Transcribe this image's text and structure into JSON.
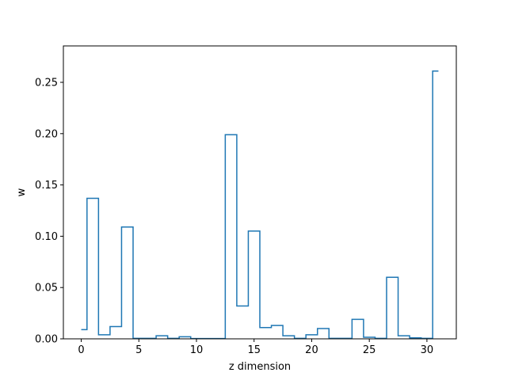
{
  "chart_data": {
    "type": "line",
    "drawstyle": "steps-mid",
    "title": "",
    "xlabel": "z dimension",
    "ylabel": "w",
    "xlim": [
      -1.55,
      32.55
    ],
    "ylim": [
      0,
      0.2855
    ],
    "xticks": [
      0,
      5,
      10,
      15,
      20,
      25,
      30
    ],
    "xtick_labels": [
      "0",
      "5",
      "10",
      "15",
      "20",
      "25",
      "30"
    ],
    "yticks": [
      0.0,
      0.05,
      0.1,
      0.15,
      0.2,
      0.25
    ],
    "ytick_labels": [
      "0.00",
      "0.05",
      "0.10",
      "0.15",
      "0.20",
      "0.25"
    ],
    "grid": false,
    "series": [
      {
        "color": "#1f77b4",
        "x": [
          0,
          1,
          2,
          3,
          4,
          5,
          6,
          7,
          8,
          9,
          10,
          11,
          12,
          13,
          14,
          15,
          16,
          17,
          18,
          19,
          20,
          21,
          22,
          23,
          24,
          25,
          26,
          27,
          28,
          29,
          30,
          31
        ],
        "values": [
          0.009,
          0.137,
          0.004,
          0.012,
          0.109,
          0.0005,
          0.0005,
          0.003,
          0.0005,
          0.002,
          0.0003,
          0.0003,
          0.0003,
          0.199,
          0.032,
          0.105,
          0.011,
          0.013,
          0.003,
          0.0005,
          0.004,
          0.01,
          0.0005,
          0.0005,
          0.019,
          0.0015,
          0.0005,
          0.06,
          0.003,
          0.001,
          0.0005,
          0.261
        ]
      }
    ]
  }
}
